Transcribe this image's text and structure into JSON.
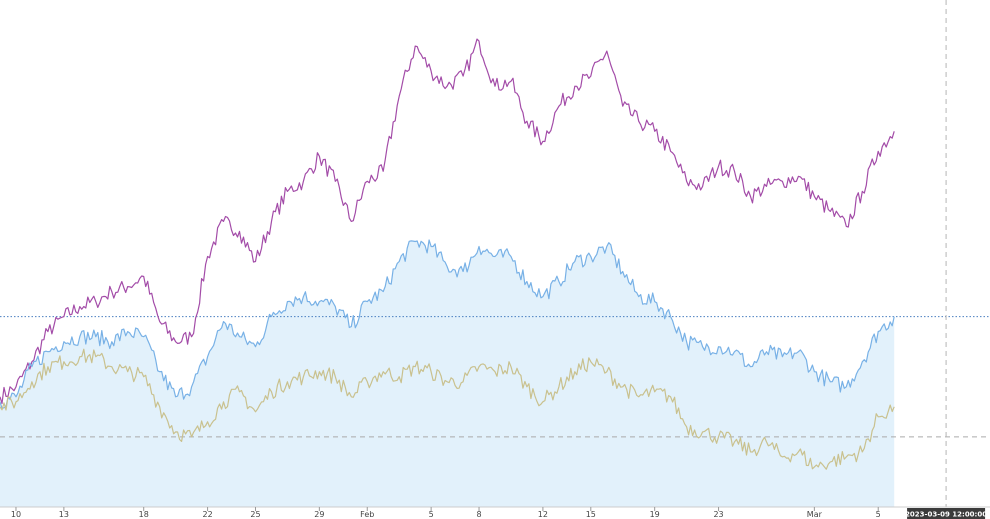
{
  "chart_data": {
    "type": "line",
    "x_axis": {
      "type": "date",
      "range": [
        "2023-01-09",
        "2023-03-12"
      ],
      "tick_labels": [
        {
          "date": "2023-01-10",
          "label": "10"
        },
        {
          "date": "2023-01-13",
          "label": "13"
        },
        {
          "date": "2023-01-18",
          "label": "18"
        },
        {
          "date": "2023-01-22",
          "label": "22"
        },
        {
          "date": "2023-01-25",
          "label": "25"
        },
        {
          "date": "2023-01-29",
          "label": "29"
        },
        {
          "date": "2023-02-01",
          "label": "Feb"
        },
        {
          "date": "2023-02-05",
          "label": "5"
        },
        {
          "date": "2023-02-08",
          "label": "8"
        },
        {
          "date": "2023-02-12",
          "label": "12"
        },
        {
          "date": "2023-02-15",
          "label": "15"
        },
        {
          "date": "2023-02-19",
          "label": "19"
        },
        {
          "date": "2023-02-23",
          "label": "23"
        },
        {
          "date": "2023-03-01",
          "label": "Mar"
        },
        {
          "date": "2023-03-05",
          "label": "5"
        }
      ]
    },
    "y_axis": {
      "visible": false,
      "range": [
        0,
        100
      ]
    },
    "grid": false,
    "crosshair": {
      "date": "2023-03-09",
      "label": "2023-03-09 12:00:00"
    },
    "reference_lines": [
      {
        "style": "dotted",
        "color": "#4a7fc0",
        "value": 38
      },
      {
        "style": "dashed",
        "color": "#aaaaaa",
        "value": 14
      }
    ],
    "series": [
      {
        "color": "#a34ca8",
        "fill": false,
        "points": [
          [
            "2023-01-09",
            22
          ],
          [
            "2023-01-10",
            24
          ],
          [
            "2023-01-11",
            29
          ],
          [
            "2023-01-12",
            35
          ],
          [
            "2023-01-13",
            38
          ],
          [
            "2023-01-14",
            40
          ],
          [
            "2023-01-15",
            41
          ],
          [
            "2023-01-16",
            43
          ],
          [
            "2023-01-17",
            44
          ],
          [
            "2023-01-18",
            46
          ],
          [
            "2023-01-19",
            37
          ],
          [
            "2023-01-20",
            33
          ],
          [
            "2023-01-21",
            34
          ],
          [
            "2023-01-22",
            50
          ],
          [
            "2023-01-23",
            57
          ],
          [
            "2023-01-24",
            55
          ],
          [
            "2023-01-25",
            49
          ],
          [
            "2023-01-26",
            57
          ],
          [
            "2023-01-27",
            63
          ],
          [
            "2023-01-28",
            65
          ],
          [
            "2023-01-29",
            70
          ],
          [
            "2023-01-30",
            65
          ],
          [
            "2023-01-31",
            57
          ],
          [
            "2023-02-01",
            65
          ],
          [
            "2023-02-02",
            67
          ],
          [
            "2023-02-03",
            82
          ],
          [
            "2023-02-04",
            92
          ],
          [
            "2023-02-05",
            87
          ],
          [
            "2023-02-06",
            84
          ],
          [
            "2023-02-07",
            86
          ],
          [
            "2023-02-08",
            93
          ],
          [
            "2023-02-09",
            84
          ],
          [
            "2023-02-10",
            85
          ],
          [
            "2023-02-11",
            77
          ],
          [
            "2023-02-12",
            73
          ],
          [
            "2023-02-13",
            80
          ],
          [
            "2023-02-14",
            84
          ],
          [
            "2023-02-15",
            86
          ],
          [
            "2023-02-16",
            91
          ],
          [
            "2023-02-17",
            80
          ],
          [
            "2023-02-18",
            77
          ],
          [
            "2023-02-19",
            75
          ],
          [
            "2023-02-20",
            71
          ],
          [
            "2023-02-21",
            65
          ],
          [
            "2023-02-22",
            64
          ],
          [
            "2023-02-23",
            68
          ],
          [
            "2023-02-24",
            67
          ],
          [
            "2023-02-25",
            62
          ],
          [
            "2023-02-26",
            64
          ],
          [
            "2023-02-27",
            65
          ],
          [
            "2023-02-28",
            66
          ],
          [
            "2023-03-01",
            62
          ],
          [
            "2023-03-02",
            59
          ],
          [
            "2023-03-03",
            56
          ],
          [
            "2023-03-04",
            63
          ],
          [
            "2023-03-05",
            71
          ],
          [
            "2023-03-06",
            75
          ]
        ]
      },
      {
        "color": "#78b1e6",
        "fill": true,
        "fill_color": "#e2f1fb",
        "points": [
          [
            "2023-01-09",
            21
          ],
          [
            "2023-01-10",
            22
          ],
          [
            "2023-01-11",
            28
          ],
          [
            "2023-01-12",
            31
          ],
          [
            "2023-01-13",
            33
          ],
          [
            "2023-01-14",
            34
          ],
          [
            "2023-01-15",
            34
          ],
          [
            "2023-01-16",
            33
          ],
          [
            "2023-01-17",
            35
          ],
          [
            "2023-01-18",
            34
          ],
          [
            "2023-01-19",
            27
          ],
          [
            "2023-01-20",
            22
          ],
          [
            "2023-01-21",
            24
          ],
          [
            "2023-01-22",
            30
          ],
          [
            "2023-01-23",
            37
          ],
          [
            "2023-01-24",
            34
          ],
          [
            "2023-01-25",
            32
          ],
          [
            "2023-01-26",
            38
          ],
          [
            "2023-01-27",
            41
          ],
          [
            "2023-01-28",
            42
          ],
          [
            "2023-01-29",
            41
          ],
          [
            "2023-01-30",
            40
          ],
          [
            "2023-01-31",
            36
          ],
          [
            "2023-02-01",
            41
          ],
          [
            "2023-02-02",
            43
          ],
          [
            "2023-02-03",
            49
          ],
          [
            "2023-02-04",
            53
          ],
          [
            "2023-02-05",
            52
          ],
          [
            "2023-02-06",
            48
          ],
          [
            "2023-02-07",
            47
          ],
          [
            "2023-02-08",
            52
          ],
          [
            "2023-02-09",
            50
          ],
          [
            "2023-02-10",
            50
          ],
          [
            "2023-02-11",
            45
          ],
          [
            "2023-02-12",
            42
          ],
          [
            "2023-02-13",
            45
          ],
          [
            "2023-02-14",
            49
          ],
          [
            "2023-02-15",
            50
          ],
          [
            "2023-02-16",
            52
          ],
          [
            "2023-02-17",
            47
          ],
          [
            "2023-02-18",
            42
          ],
          [
            "2023-02-19",
            41
          ],
          [
            "2023-02-20",
            38
          ],
          [
            "2023-02-21",
            33
          ],
          [
            "2023-02-22",
            32
          ],
          [
            "2023-02-23",
            32
          ],
          [
            "2023-02-24",
            31
          ],
          [
            "2023-02-25",
            28
          ],
          [
            "2023-02-26",
            31
          ],
          [
            "2023-02-27",
            30
          ],
          [
            "2023-02-28",
            31
          ],
          [
            "2023-03-01",
            27
          ],
          [
            "2023-03-02",
            25
          ],
          [
            "2023-03-03",
            24
          ],
          [
            "2023-03-04",
            29
          ],
          [
            "2023-03-05",
            35
          ],
          [
            "2023-03-06",
            38
          ]
        ]
      },
      {
        "color": "#c9c18e",
        "fill": false,
        "points": [
          [
            "2023-01-09",
            20
          ],
          [
            "2023-01-10",
            21
          ],
          [
            "2023-01-11",
            25
          ],
          [
            "2023-01-12",
            28
          ],
          [
            "2023-01-13",
            29
          ],
          [
            "2023-01-14",
            30
          ],
          [
            "2023-01-15",
            30
          ],
          [
            "2023-01-16",
            28
          ],
          [
            "2023-01-17",
            27
          ],
          [
            "2023-01-18",
            26
          ],
          [
            "2023-01-19",
            20
          ],
          [
            "2023-01-20",
            15
          ],
          [
            "2023-01-21",
            14
          ],
          [
            "2023-01-22",
            17
          ],
          [
            "2023-01-23",
            21
          ],
          [
            "2023-01-24",
            23
          ],
          [
            "2023-01-25",
            19
          ],
          [
            "2023-01-26",
            23
          ],
          [
            "2023-01-27",
            25
          ],
          [
            "2023-01-28",
            26
          ],
          [
            "2023-01-29",
            27
          ],
          [
            "2023-01-30",
            26
          ],
          [
            "2023-01-31",
            22
          ],
          [
            "2023-02-01",
            25
          ],
          [
            "2023-02-02",
            27
          ],
          [
            "2023-02-03",
            26
          ],
          [
            "2023-02-04",
            28
          ],
          [
            "2023-02-05",
            27
          ],
          [
            "2023-02-06",
            25
          ],
          [
            "2023-02-07",
            25
          ],
          [
            "2023-02-08",
            28
          ],
          [
            "2023-02-09",
            27
          ],
          [
            "2023-02-10",
            28
          ],
          [
            "2023-02-11",
            24
          ],
          [
            "2023-02-12",
            21
          ],
          [
            "2023-02-13",
            24
          ],
          [
            "2023-02-14",
            27
          ],
          [
            "2023-02-15",
            29
          ],
          [
            "2023-02-16",
            27
          ],
          [
            "2023-02-17",
            24
          ],
          [
            "2023-02-18",
            22
          ],
          [
            "2023-02-19",
            23
          ],
          [
            "2023-02-20",
            22
          ],
          [
            "2023-02-21",
            16
          ],
          [
            "2023-02-22",
            15
          ],
          [
            "2023-02-23",
            14
          ],
          [
            "2023-02-24",
            13
          ],
          [
            "2023-02-25",
            11
          ],
          [
            "2023-02-26",
            13
          ],
          [
            "2023-02-27",
            10
          ],
          [
            "2023-02-28",
            11
          ],
          [
            "2023-03-01",
            8
          ],
          [
            "2023-03-02",
            9
          ],
          [
            "2023-03-03",
            10
          ],
          [
            "2023-03-04",
            11
          ],
          [
            "2023-03-05",
            18
          ],
          [
            "2023-03-06",
            20
          ]
        ]
      }
    ]
  }
}
